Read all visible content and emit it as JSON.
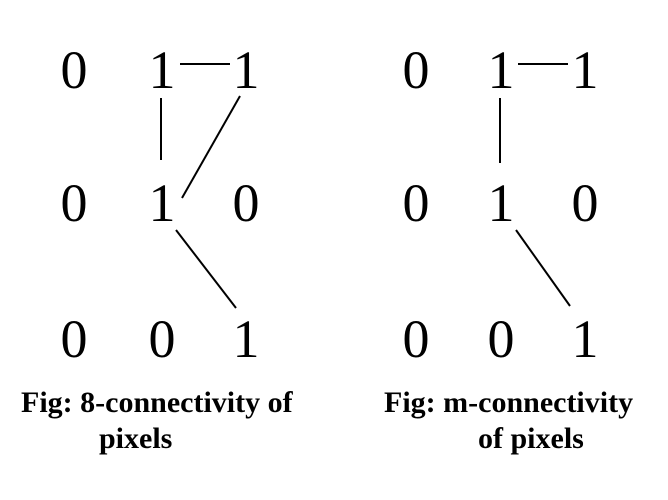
{
  "figures": [
    {
      "grid": [
        [
          "0",
          "1",
          "1"
        ],
        [
          "0",
          "1",
          "0"
        ],
        [
          "0",
          "0",
          "1"
        ]
      ],
      "caption_line1": "Fig: 8-connectivity of",
      "caption_line2": "pixels"
    },
    {
      "grid": [
        [
          "0",
          "1",
          "1"
        ],
        [
          "0",
          "1",
          "0"
        ],
        [
          "0",
          "0",
          "1"
        ]
      ],
      "caption_line1": "Fig: m-connectivity",
      "caption_line2": "of pixels"
    }
  ]
}
